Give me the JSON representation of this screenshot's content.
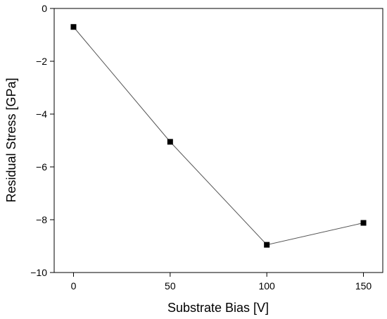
{
  "chart_data": {
    "type": "line",
    "xlabel": "Substrate Bias [V]",
    "ylabel": "Residual Stress [GPa]",
    "xlim": [
      -10,
      160
    ],
    "ylim": [
      -10,
      0
    ],
    "xticks": [
      0,
      50,
      100,
      150
    ],
    "yticks": [
      0,
      -2,
      -4,
      -6,
      -8,
      -10
    ],
    "grid": false,
    "series": [
      {
        "x": [
          0,
          50,
          100,
          150
        ],
        "y": [
          -0.7,
          -5.05,
          -8.95,
          -8.12
        ],
        "marker": "square",
        "color": "#000000",
        "line_color": "#555555"
      }
    ]
  }
}
